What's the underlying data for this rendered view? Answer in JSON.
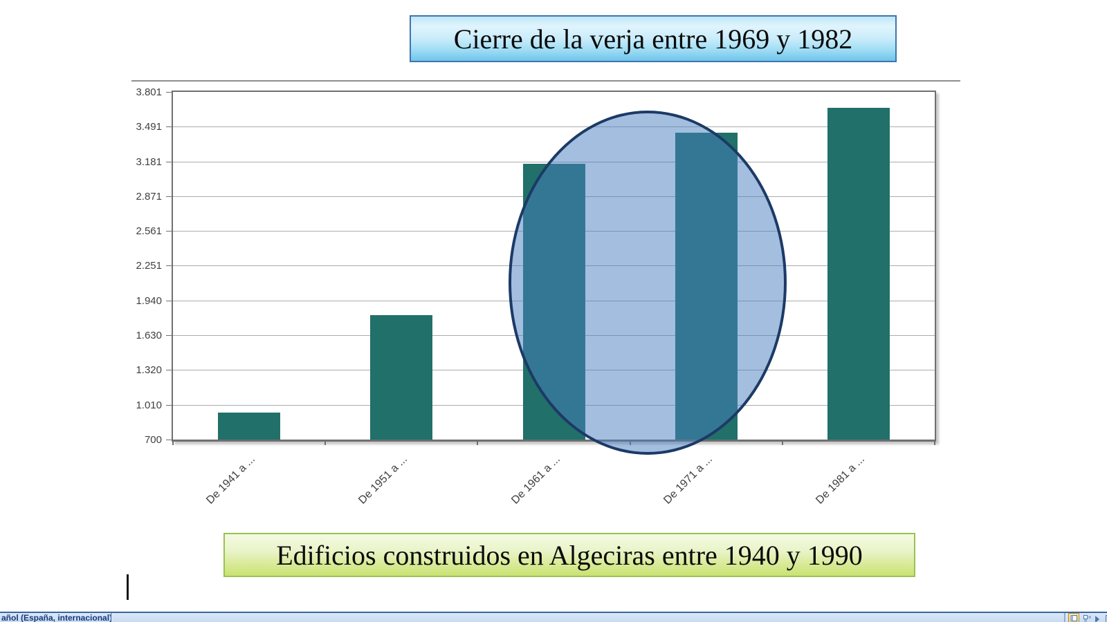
{
  "callouts": {
    "top": "Cierre de la verja entre 1969 y 1982",
    "bottom": "Edificios construidos en Algeciras entre 1940 y 1990"
  },
  "chart_data": {
    "type": "bar",
    "title": "Edificios construidos en Algeciras entre 1940 y 1990",
    "categories": [
      "De 1941 a ...",
      "De 1951 a ...",
      "De 1961 a ...",
      "De 1971 a ...",
      "De 1981 a ..."
    ],
    "values": [
      940,
      1810,
      3160,
      3440,
      3660
    ],
    "y_tick_labels": [
      "3.801",
      "3.491",
      "3.181",
      "2.871",
      "2.561",
      "2.251",
      "1.940",
      "1.630",
      "1.320",
      "1.010",
      "700"
    ],
    "y_tick_values": [
      3801,
      3491,
      3181,
      2871,
      2561,
      2251,
      1940,
      1630,
      1320,
      1010,
      700
    ],
    "ylim": [
      700,
      3801
    ],
    "xlabel": "",
    "ylabel": "",
    "grid": true,
    "legend": false,
    "bar_color": "#21706A",
    "grid_color": "#ABABAB",
    "axis_color": "#6F6F6F",
    "tick_label_color": "#3F3F3F",
    "annotation": {
      "shape": "ellipse",
      "meaning": "circles the 1961-1970 and 1971-1980 bars (cierre de la verja 1969-1982)",
      "fill": "#477DBD",
      "fill_opacity": 0.5,
      "border_color": "#1C3A66"
    }
  },
  "status_bar": {
    "language": "añol (España, internacional)",
    "view_buttons": [
      {
        "name": "normal-view",
        "selected": true
      },
      {
        "name": "slide-sorter",
        "selected": false
      },
      {
        "name": "slide-show",
        "selected": false
      },
      {
        "name": "partial-clipped",
        "selected": false
      }
    ]
  },
  "accent_colors": {
    "top_callout_border": "#3F74AD",
    "bottom_callout_border": "#9BC152",
    "statusbar_border": "#3A64A0"
  }
}
